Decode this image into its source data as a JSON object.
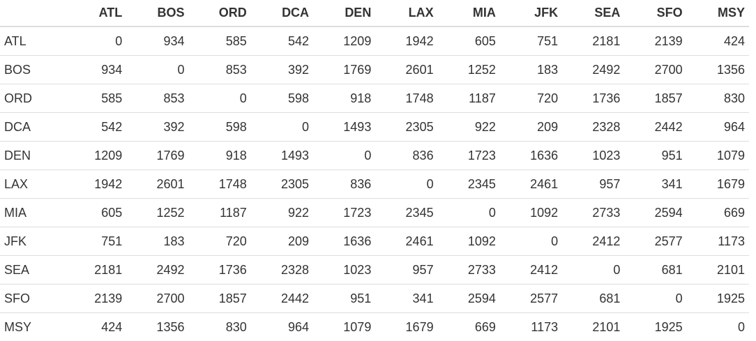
{
  "table": {
    "corner": "",
    "columns": [
      "ATL",
      "BOS",
      "ORD",
      "DCA",
      "DEN",
      "LAX",
      "MIA",
      "JFK",
      "SEA",
      "SFO",
      "MSY"
    ],
    "rows": [
      {
        "label": "ATL",
        "values": [
          "0",
          "934",
          "585",
          "542",
          "1209",
          "1942",
          "605",
          "751",
          "2181",
          "2139",
          "424"
        ]
      },
      {
        "label": "BOS",
        "values": [
          "934",
          "0",
          "853",
          "392",
          "1769",
          "2601",
          "1252",
          "183",
          "2492",
          "2700",
          "1356"
        ]
      },
      {
        "label": "ORD",
        "values": [
          "585",
          "853",
          "0",
          "598",
          "918",
          "1748",
          "1187",
          "720",
          "1736",
          "1857",
          "830"
        ]
      },
      {
        "label": "DCA",
        "values": [
          "542",
          "392",
          "598",
          "0",
          "1493",
          "2305",
          "922",
          "209",
          "2328",
          "2442",
          "964"
        ]
      },
      {
        "label": "DEN",
        "values": [
          "1209",
          "1769",
          "918",
          "1493",
          "0",
          "836",
          "1723",
          "1636",
          "1023",
          "951",
          "1079"
        ]
      },
      {
        "label": "LAX",
        "values": [
          "1942",
          "2601",
          "1748",
          "2305",
          "836",
          "0",
          "2345",
          "2461",
          "957",
          "341",
          "1679"
        ]
      },
      {
        "label": "MIA",
        "values": [
          "605",
          "1252",
          "1187",
          "922",
          "1723",
          "2345",
          "0",
          "1092",
          "2733",
          "2594",
          "669"
        ]
      },
      {
        "label": "JFK",
        "values": [
          "751",
          "183",
          "720",
          "209",
          "1636",
          "2461",
          "1092",
          "0",
          "2412",
          "2577",
          "1173"
        ]
      },
      {
        "label": "SEA",
        "values": [
          "2181",
          "2492",
          "1736",
          "2328",
          "1023",
          "957",
          "2733",
          "2412",
          "0",
          "681",
          "2101"
        ]
      },
      {
        "label": "SFO",
        "values": [
          "2139",
          "2700",
          "1857",
          "2442",
          "951",
          "341",
          "2594",
          "2577",
          "681",
          "0",
          "1925"
        ]
      },
      {
        "label": "MSY",
        "values": [
          "424",
          "1356",
          "830",
          "964",
          "1079",
          "1679",
          "669",
          "1173",
          "2101",
          "1925",
          "0"
        ]
      }
    ]
  }
}
